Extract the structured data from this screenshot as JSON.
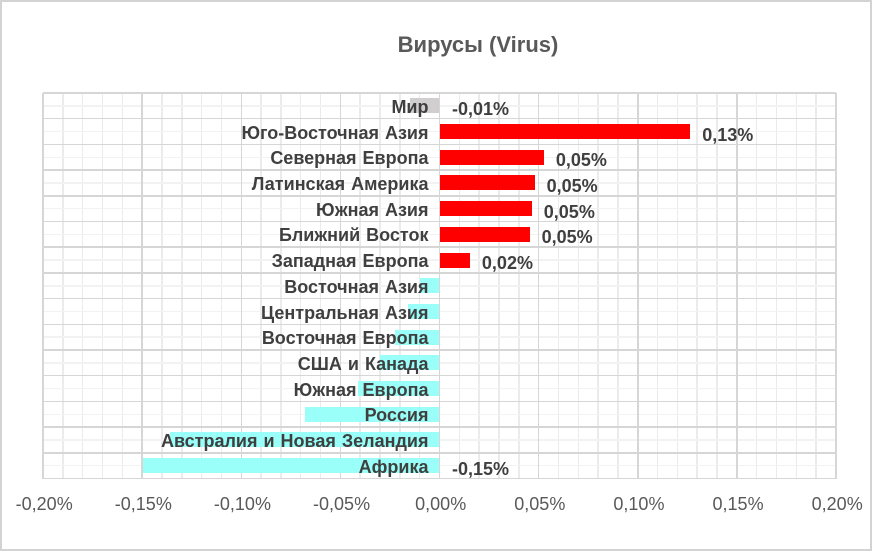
{
  "chart_data": {
    "type": "bar",
    "orientation": "horizontal",
    "title": "Вирусы (Virus)",
    "categories": [
      "Мир",
      "Юго-Восточная Азия",
      "Северная Европа",
      "Латинская Америка",
      "Южная Азия",
      "Ближний Восток",
      "Западная Европа",
      "Восточная Азия",
      "Центральная Азия",
      "Восточная Европа",
      "США и Канада",
      "Южная Европа",
      "Россия",
      "Австралия и Новая Зеландия",
      "Африка"
    ],
    "values_percent": [
      -0.0144,
      0.1262,
      0.0524,
      0.0477,
      0.0463,
      0.0452,
      0.0151,
      -0.0095,
      -0.0155,
      -0.022,
      -0.0295,
      -0.0408,
      -0.0676,
      -0.1355,
      -0.1491
    ],
    "data_labels": [
      "-0,01%",
      "0,13%",
      "0,05%",
      "0,05%",
      "0,05%",
      "0,05%",
      "0,02%",
      "",
      "",
      "",
      "",
      "",
      "",
      "",
      "-0,15%"
    ],
    "bar_colors": [
      "#d0cece",
      "#ff0000",
      "#ff0000",
      "#ff0000",
      "#ff0000",
      "#ff0000",
      "#ff0000",
      "#9afff8",
      "#9afff8",
      "#9afff8",
      "#9afff8",
      "#9afff8",
      "#9afff8",
      "#9afff8",
      "#9afff8"
    ],
    "x_axis": {
      "min_percent": -0.2,
      "max_percent": 0.2,
      "major_unit_percent": 0.05,
      "minor_unit_percent": 0.01,
      "tick_labels": [
        "-0,20%",
        "-0,15%",
        "-0,10%",
        "-0,05%",
        "0,00%",
        "0,05%",
        "0,10%",
        "0,15%",
        "0,20%"
      ]
    },
    "legend": "none",
    "grid": "major-and-minor",
    "colors": {
      "positive_bar": "#ff0000",
      "negative_bar": "#9afff8",
      "world_bar": "#d0cece",
      "title_text": "#595959",
      "label_text": "#3f3f3f",
      "axis_text": "#595959",
      "major_gridline": "#d6d6d6",
      "minor_gridline": "#ebebeb"
    }
  }
}
